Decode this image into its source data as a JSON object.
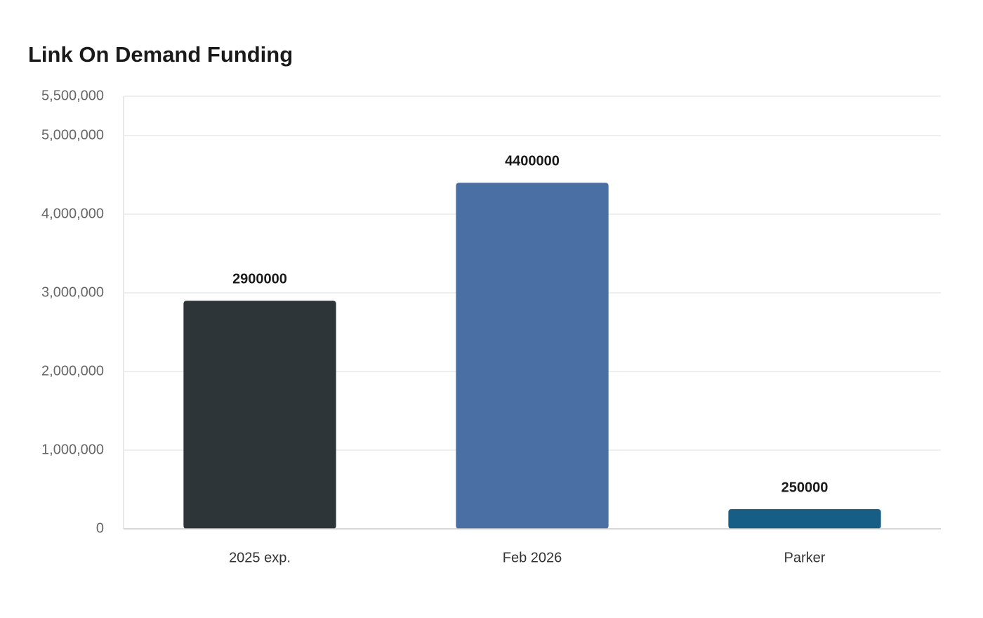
{
  "chart_data": {
    "type": "bar",
    "title": "Link On Demand Funding",
    "categories": [
      "2025 exp.",
      "Feb 2026",
      "Parker"
    ],
    "values": [
      2900000,
      4400000,
      250000
    ],
    "colors": [
      "#2e3538",
      "#4a6fa5",
      "#175e86"
    ],
    "ylim": [
      0,
      5500000
    ],
    "yticks": [
      0,
      {
        "value": 1000000,
        "label": "1,000,000"
      },
      {
        "value": 2000000,
        "label": "2,000,000"
      },
      {
        "value": 3000000,
        "label": "3,000,000"
      },
      {
        "value": 4000000,
        "label": "4,000,000"
      },
      {
        "value": 5000000,
        "label": "5,000,000"
      },
      {
        "value": 5500000,
        "label": "5,500,000"
      }
    ],
    "grid": true
  }
}
